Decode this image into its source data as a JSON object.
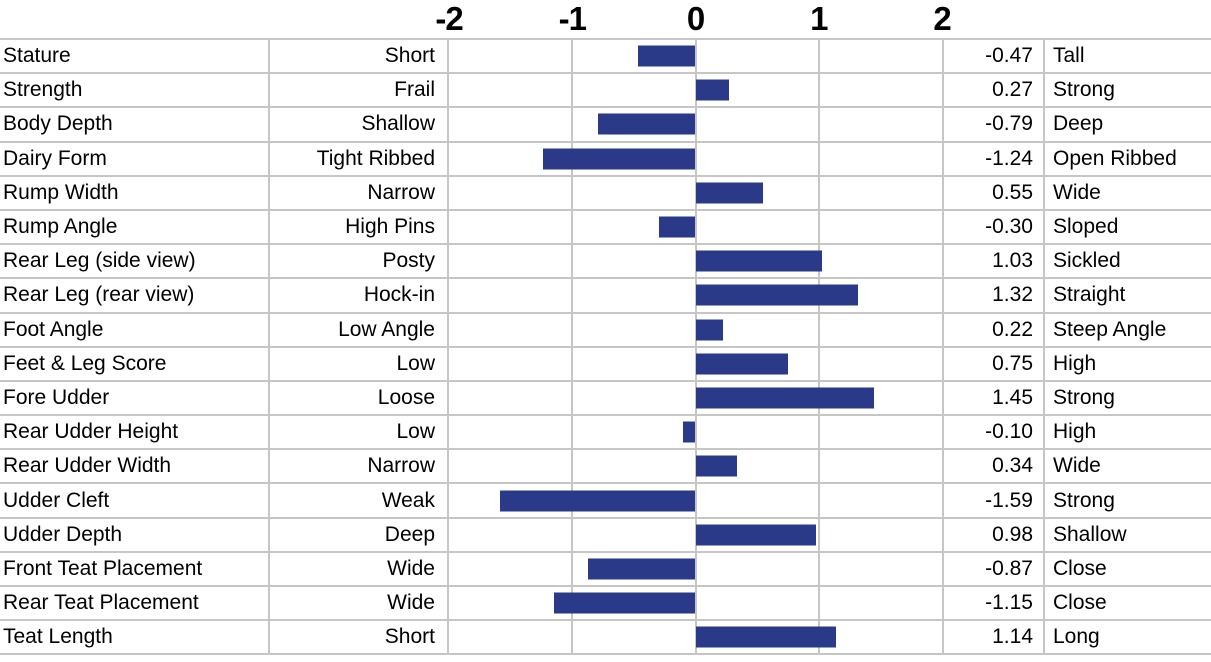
{
  "axis": {
    "ticks": [
      "-2",
      "-1",
      "0",
      "1",
      "2"
    ]
  },
  "colors": {
    "bar": "#2B3A88",
    "gridline": "#C6C6C6"
  },
  "rows": [
    {
      "trait": "Stature",
      "low": "Short",
      "value": -0.47,
      "value_display": "-0.47",
      "high": "Tall"
    },
    {
      "trait": "Strength",
      "low": "Frail",
      "value": 0.27,
      "value_display": "0.27",
      "high": "Strong"
    },
    {
      "trait": "Body Depth",
      "low": "Shallow",
      "value": -0.79,
      "value_display": "-0.79",
      "high": "Deep"
    },
    {
      "trait": "Dairy Form",
      "low": "Tight Ribbed",
      "value": -1.24,
      "value_display": "-1.24",
      "high": "Open Ribbed"
    },
    {
      "trait": "Rump Width",
      "low": "Narrow",
      "value": 0.55,
      "value_display": "0.55",
      "high": "Wide"
    },
    {
      "trait": "Rump Angle",
      "low": "High Pins",
      "value": -0.3,
      "value_display": "-0.30",
      "high": "Sloped"
    },
    {
      "trait": "Rear Leg (side view)",
      "low": "Posty",
      "value": 1.03,
      "value_display": "1.03",
      "high": "Sickled"
    },
    {
      "trait": "Rear Leg (rear view)",
      "low": "Hock-in",
      "value": 1.32,
      "value_display": "1.32",
      "high": "Straight"
    },
    {
      "trait": "Foot Angle",
      "low": "Low Angle",
      "value": 0.22,
      "value_display": "0.22",
      "high": "Steep Angle"
    },
    {
      "trait": "Feet & Leg Score",
      "low": "Low",
      "value": 0.75,
      "value_display": "0.75",
      "high": "High"
    },
    {
      "trait": "Fore Udder",
      "low": "Loose",
      "value": 1.45,
      "value_display": "1.45",
      "high": "Strong"
    },
    {
      "trait": "Rear Udder Height",
      "low": "Low",
      "value": -0.1,
      "value_display": "-0.10",
      "high": "High"
    },
    {
      "trait": "Rear Udder Width",
      "low": "Narrow",
      "value": 0.34,
      "value_display": "0.34",
      "high": "Wide"
    },
    {
      "trait": "Udder Cleft",
      "low": "Weak",
      "value": -1.59,
      "value_display": "-1.59",
      "high": "Strong"
    },
    {
      "trait": "Udder Depth",
      "low": "Deep",
      "value": 0.98,
      "value_display": "0.98",
      "high": "Shallow"
    },
    {
      "trait": "Front Teat Placement",
      "low": "Wide",
      "value": -0.87,
      "value_display": "-0.87",
      "high": "Close"
    },
    {
      "trait": "Rear Teat Placement",
      "low": "Wide",
      "value": -1.15,
      "value_display": "-1.15",
      "high": "Close"
    },
    {
      "trait": "Teat Length",
      "low": "Short",
      "value": 1.14,
      "value_display": "1.14",
      "high": "Long"
    }
  ],
  "chart_data": {
    "type": "bar",
    "orientation": "horizontal",
    "title": "",
    "xlabel": "",
    "ylabel": "",
    "xlim": [
      -2,
      2
    ],
    "x_ticks": [
      -2,
      -1,
      0,
      1,
      2
    ],
    "grid": "on",
    "legend": "none",
    "bar_color": "#2B3A88",
    "categories": [
      "Stature",
      "Strength",
      "Body Depth",
      "Dairy Form",
      "Rump Width",
      "Rump Angle",
      "Rear Leg (side view)",
      "Rear Leg (rear view)",
      "Foot Angle",
      "Feet & Leg Score",
      "Fore Udder",
      "Rear Udder Height",
      "Rear Udder Width",
      "Udder Cleft",
      "Udder Depth",
      "Front Teat Placement",
      "Rear Teat Placement",
      "Teat Length"
    ],
    "values": [
      -0.47,
      0.27,
      -0.79,
      -1.24,
      0.55,
      -0.3,
      1.03,
      1.32,
      0.22,
      0.75,
      1.45,
      -0.1,
      0.34,
      -1.59,
      0.98,
      -0.87,
      -1.15,
      1.14
    ],
    "low_end_labels": [
      "Short",
      "Frail",
      "Shallow",
      "Tight Ribbed",
      "Narrow",
      "High Pins",
      "Posty",
      "Hock-in",
      "Low Angle",
      "Low",
      "Loose",
      "Low",
      "Narrow",
      "Weak",
      "Deep",
      "Wide",
      "Wide",
      "Short"
    ],
    "high_end_labels": [
      "Tall",
      "Strong",
      "Deep",
      "Open Ribbed",
      "Wide",
      "Sloped",
      "Sickled",
      "Straight",
      "Steep Angle",
      "High",
      "Strong",
      "High",
      "Wide",
      "Strong",
      "Shallow",
      "Close",
      "Close",
      "Long"
    ]
  }
}
